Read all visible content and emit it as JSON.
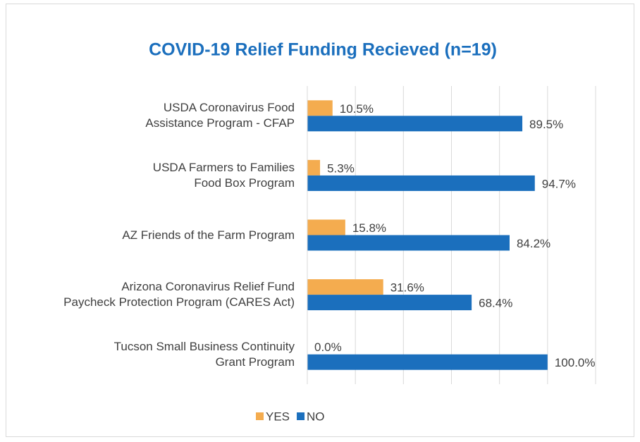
{
  "chart_data": {
    "type": "bar",
    "orientation": "horizontal",
    "title": "COVID-19 Relief Funding Recieved (n=19)",
    "categories": [
      "USDA Coronavirus Food\nAssistance Program - CFAP",
      "USDA Farmers to Families\nFood Box Program",
      "AZ Friends of the Farm Program",
      "Arizona Coronavirus Relief Fund\nPaycheck Protection Program (CARES Act)",
      "Tucson Small Business Continuity\nGrant Program"
    ],
    "series": [
      {
        "name": "YES",
        "color": "#f4ac4f",
        "values": [
          10.5,
          5.3,
          15.8,
          31.6,
          0.0
        ],
        "value_labels": [
          "10.5%",
          "5.3%",
          "15.8%",
          "31.6%",
          "0.0%"
        ]
      },
      {
        "name": "NO",
        "color": "#1b6fbd",
        "values": [
          89.5,
          94.7,
          84.2,
          68.4,
          100.0
        ],
        "value_labels": [
          "89.5%",
          "94.7%",
          "84.2%",
          "68.4%",
          "100.0%"
        ]
      }
    ],
    "xlim": [
      0,
      120
    ],
    "xticks": [
      0,
      20,
      40,
      60,
      80,
      100,
      120
    ],
    "grid": true,
    "legend": "bottom"
  }
}
